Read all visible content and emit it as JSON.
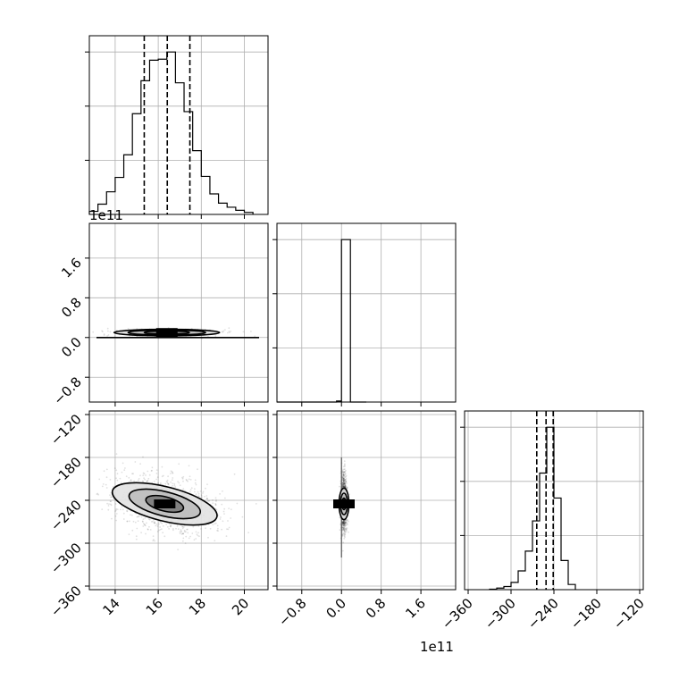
{
  "chart_data": {
    "type": "corner",
    "parameters": [
      {
        "name": "",
        "range": [
          12.8,
          21.1
        ],
        "ticks": [
          "14",
          "16",
          "18",
          "20"
        ],
        "quantiles": [
          15.35,
          16.42,
          17.47
        ]
      },
      {
        "name": "",
        "range": [
          -1.3,
          2.3
        ],
        "ticks": [
          "−0.8",
          "0.0",
          "0.8",
          "1.6"
        ],
        "offset_label": "1e11"
      },
      {
        "name": "",
        "range": [
          -365,
          -115
        ],
        "ticks": [
          "−360",
          "−300",
          "−240",
          "−180",
          "−120"
        ],
        "quantiles": [
          -264,
          -251,
          -241
        ]
      }
    ],
    "diag_offset_label": "1e11",
    "hist1": {
      "bins": [
        12.8,
        13.2,
        13.6,
        14.0,
        14.4,
        14.8,
        15.2,
        15.6,
        16.0,
        16.4,
        16.8,
        17.2,
        17.6,
        18.0,
        18.4,
        18.8,
        19.2,
        19.6,
        20.0,
        20.4
      ],
      "counts": [
        3,
        10,
        22,
        36,
        58,
        98,
        130,
        150,
        151,
        158,
        128,
        100,
        62,
        37,
        20,
        11,
        7,
        4,
        2
      ]
    },
    "hist2": {
      "bins": [
        -1.3,
        -0.1,
        0.0,
        0.18,
        0.5
      ],
      "counts": [
        0,
        1,
        158,
        0
      ]
    },
    "hist3": {
      "bins": [
        -330,
        -320,
        -310,
        -300,
        -290,
        -280,
        -270,
        -260,
        -250,
        -240,
        -230,
        -220,
        -210
      ],
      "counts": [
        0.5,
        1.5,
        3,
        7,
        18,
        37,
        66,
        112,
        156,
        88,
        28,
        5
      ]
    },
    "contours": {
      "p21": {
        "center": [
          16.4,
          0.1
        ],
        "levels": [
          [
            1.05,
            0.035
          ],
          [
            1.8,
            0.05
          ],
          [
            2.45,
            0.065
          ]
        ]
      },
      "p31": {
        "center": [
          16.3,
          -245
        ],
        "levels": [
          [
            0.9,
            10,
            -14
          ],
          [
            1.7,
            17,
            -14
          ],
          [
            2.5,
            24,
            -14
          ]
        ]
      },
      "p32": {
        "center": [
          0.05,
          -245
        ],
        "levels": [
          [
            0.04,
            8
          ],
          [
            0.07,
            15
          ],
          [
            0.1,
            22
          ]
        ]
      }
    }
  }
}
